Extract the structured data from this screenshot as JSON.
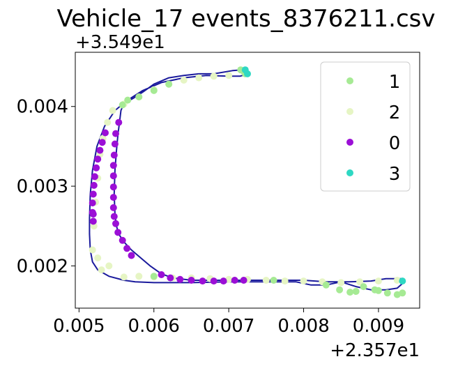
{
  "chart_data": {
    "type": "scatter",
    "title": "Vehicle_17 events_8376211.csv",
    "xlabel": "",
    "ylabel": "",
    "x_offset_text": "+2.357e1",
    "y_offset_text": "+3.549e1",
    "xlim": [
      0.00495,
      0.00955
    ],
    "ylim": [
      0.00147,
      0.00468
    ],
    "xticks": [
      0.005,
      0.006,
      0.007,
      0.008,
      0.009
    ],
    "xtick_labels": [
      "0.005",
      "0.006",
      "0.007",
      "0.008",
      "0.009"
    ],
    "yticks": [
      0.002,
      0.003,
      0.004
    ],
    "ytick_labels": [
      "0.002",
      "0.003",
      "0.004"
    ],
    "grid": false,
    "legend_position": "upper right",
    "track": {
      "color": "#1a1a9c",
      "points": [
        [
          0.0072,
          0.0044
        ],
        [
          0.00722,
          0.00444
        ],
        [
          0.00718,
          0.00446
        ],
        [
          0.00705,
          0.00445
        ],
        [
          0.0068,
          0.00441
        ],
        [
          0.0066,
          0.00441
        ],
        [
          0.0064,
          0.00439
        ],
        [
          0.0062,
          0.00436
        ],
        [
          0.006,
          0.00428
        ],
        [
          0.00585,
          0.00418
        ],
        [
          0.00572,
          0.0041
        ],
        [
          0.0056,
          0.00404
        ],
        [
          0.00556,
          0.00395
        ],
        [
          0.00554,
          0.0038
        ],
        [
          0.00552,
          0.00365
        ],
        [
          0.0055,
          0.00345
        ],
        [
          0.00548,
          0.0032
        ],
        [
          0.00547,
          0.0029
        ],
        [
          0.00548,
          0.00265
        ],
        [
          0.0055,
          0.0025
        ],
        [
          0.00553,
          0.0024
        ],
        [
          0.0056,
          0.0023
        ],
        [
          0.0057,
          0.0022
        ],
        [
          0.0058,
          0.00212
        ],
        [
          0.00595,
          0.002
        ],
        [
          0.0061,
          0.0019
        ],
        [
          0.00625,
          0.00185
        ],
        [
          0.0065,
          0.00182
        ],
        [
          0.007,
          0.00182
        ],
        [
          0.0075,
          0.00182
        ],
        [
          0.008,
          0.00182
        ],
        [
          0.0083,
          0.0018
        ],
        [
          0.0086,
          0.0018
        ],
        [
          0.0089,
          0.00181
        ],
        [
          0.0091,
          0.00184
        ],
        [
          0.0093,
          0.00184
        ],
        [
          0.00932,
          0.00178
        ],
        [
          0.00925,
          0.00172
        ],
        [
          0.0091,
          0.0017
        ],
        [
          0.0089,
          0.0017
        ],
        [
          0.0087,
          0.00174
        ],
        [
          0.0085,
          0.0018
        ],
        [
          0.0083,
          0.00176
        ],
        [
          0.0081,
          0.00176
        ],
        [
          0.0079,
          0.0018
        ],
        [
          0.0074,
          0.0018
        ],
        [
          0.007,
          0.0018
        ],
        [
          0.0065,
          0.00179
        ],
        [
          0.006,
          0.00179
        ],
        [
          0.00575,
          0.0018
        ],
        [
          0.0056,
          0.00182
        ],
        [
          0.0054,
          0.00187
        ],
        [
          0.00525,
          0.00195
        ],
        [
          0.00518,
          0.00205
        ],
        [
          0.00515,
          0.0022
        ],
        [
          0.00514,
          0.0024
        ],
        [
          0.00514,
          0.0026
        ],
        [
          0.00515,
          0.0029
        ],
        [
          0.00518,
          0.0032
        ],
        [
          0.00524,
          0.0035
        ],
        [
          0.00534,
          0.00375
        ],
        [
          0.00548,
          0.00395
        ],
        [
          0.00565,
          0.00408
        ],
        [
          0.00585,
          0.0042
        ],
        [
          0.0061,
          0.0043
        ],
        [
          0.0064,
          0.00436
        ],
        [
          0.0067,
          0.00439
        ],
        [
          0.007,
          0.00438
        ],
        [
          0.00715,
          0.00438
        ],
        [
          0.00722,
          0.0044
        ]
      ]
    },
    "series": [
      {
        "name": "1",
        "color": "#a6ea94",
        "x": [
          0.00558,
          0.00565,
          0.0058,
          0.006,
          0.0062,
          0.0072,
          0.00722,
          0.00716,
          0.0083,
          0.00848,
          0.00862,
          0.0087,
          0.00895,
          0.00912,
          0.00925,
          0.00932,
          0.009,
          0.0088,
          0.0076,
          0.006
        ],
        "y": [
          0.00402,
          0.00408,
          0.00412,
          0.0042,
          0.00428,
          0.00444,
          0.00441,
          0.00446,
          0.00176,
          0.0017,
          0.00167,
          0.00168,
          0.0017,
          0.00166,
          0.00164,
          0.00166,
          0.00169,
          0.00174,
          0.00182,
          0.00187
        ]
      },
      {
        "name": "2",
        "color": "#e6f5c4",
        "x": [
          0.00518,
          0.0052,
          0.00522,
          0.00525,
          0.00528,
          0.00532,
          0.00538,
          0.00545,
          0.0056,
          0.0058,
          0.006,
          0.00625,
          0.0065,
          0.00675,
          0.007,
          0.00725,
          0.0075,
          0.00775,
          0.008,
          0.00825,
          0.0085,
          0.00875,
          0.009,
          0.00925,
          0.0056,
          0.0058,
          0.006,
          0.0062,
          0.0064,
          0.0066,
          0.0068,
          0.007,
          0.0054,
          0.0053,
          0.00525
        ],
        "y": [
          0.0022,
          0.0025,
          0.0028,
          0.0031,
          0.0034,
          0.0036,
          0.0038,
          0.00395,
          0.00186,
          0.00187,
          0.00186,
          0.00185,
          0.00185,
          0.00184,
          0.00183,
          0.00183,
          0.00182,
          0.00181,
          0.00181,
          0.0018,
          0.00179,
          0.0018,
          0.00181,
          0.00182,
          0.00403,
          0.00412,
          0.00421,
          0.00428,
          0.00433,
          0.00436,
          0.00438,
          0.00439,
          0.002,
          0.00195,
          0.0021
        ]
      },
      {
        "name": "0",
        "color": "#9b0fd6",
        "x": [
          0.00535,
          0.00531,
          0.00528,
          0.00525,
          0.00523,
          0.00521,
          0.0052,
          0.00519,
          0.00518,
          0.00518,
          0.00519,
          0.00519,
          0.00553,
          0.00549,
          0.00548,
          0.00547,
          0.00546,
          0.00546,
          0.00546,
          0.00546,
          0.00546,
          0.00547,
          0.00549,
          0.00552,
          0.00558,
          0.00564,
          0.0057,
          0.0061,
          0.00622,
          0.00635,
          0.0065,
          0.00665,
          0.0068,
          0.00693,
          0.00708,
          0.0072
        ],
        "y": [
          0.00367,
          0.00355,
          0.00345,
          0.00334,
          0.00323,
          0.00312,
          0.00301,
          0.0029,
          0.00279,
          0.00267,
          0.00256,
          0.00265,
          0.0038,
          0.00366,
          0.00353,
          0.00339,
          0.00326,
          0.00313,
          0.00299,
          0.00286,
          0.00273,
          0.00262,
          0.00253,
          0.00242,
          0.00232,
          0.00222,
          0.00213,
          0.00189,
          0.00185,
          0.00183,
          0.00182,
          0.00181,
          0.00181,
          0.00181,
          0.00182,
          0.00182
        ]
      },
      {
        "name": "3",
        "color": "#2ed8c3",
        "x": [
          0.00722,
          0.00725,
          0.00932
        ],
        "y": [
          0.00446,
          0.00441,
          0.00181
        ]
      }
    ]
  }
}
